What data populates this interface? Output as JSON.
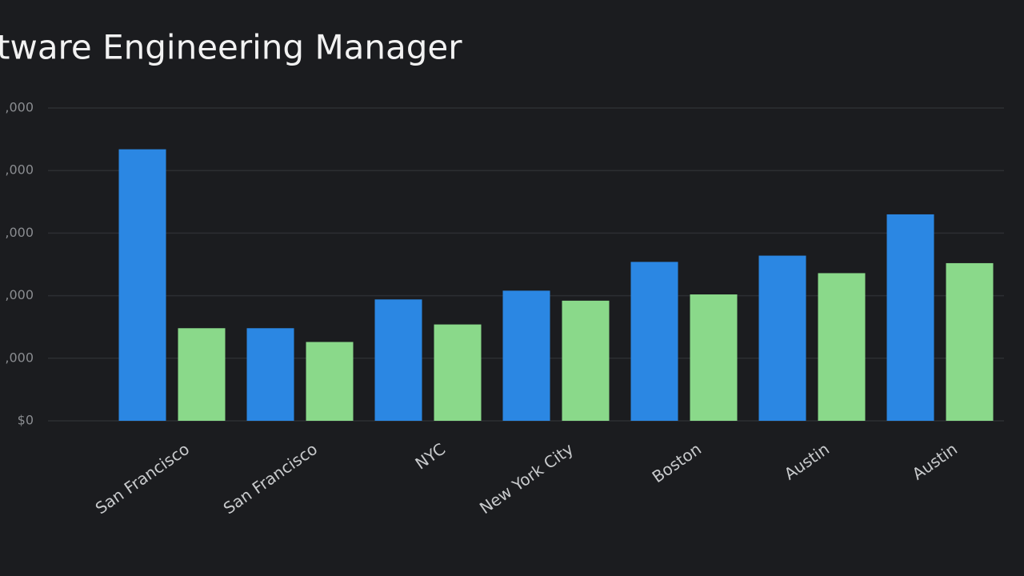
{
  "chart_data": {
    "type": "bar",
    "title": "tware Engineering Manager",
    "categories": [
      "San Francisco",
      "San Francisco",
      "NYC",
      "New York City",
      "Boston",
      "Austin",
      "Austin"
    ],
    "series": [
      {
        "color": "#2b87e3",
        "values": [
          217000,
          74000,
          97000,
          104000,
          127000,
          132000,
          165000
        ]
      },
      {
        "color": "#8ad98a",
        "values": [
          74000,
          63000,
          77000,
          96000,
          101000,
          118000,
          126000
        ]
      }
    ],
    "ylim": [
      0,
      250000
    ],
    "yticks": [
      {
        "value": 0,
        "label": "$0"
      },
      {
        "value": 50000,
        "label": ",000"
      },
      {
        "value": 100000,
        "label": ",000"
      },
      {
        "value": 150000,
        "label": ",000"
      },
      {
        "value": 200000,
        "label": ",000"
      },
      {
        "value": 250000,
        "label": ",000"
      }
    ],
    "grid": true
  }
}
